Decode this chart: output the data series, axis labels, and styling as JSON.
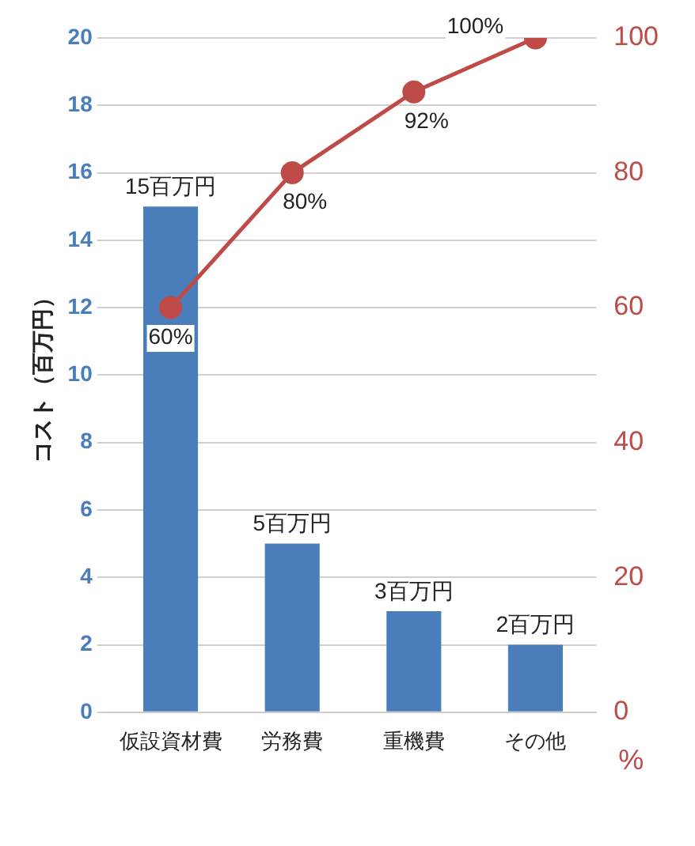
{
  "chart_data": {
    "type": "bar",
    "ylabel": "コスト（百万円）",
    "y2label": "%",
    "categories": [
      "仮設資材費",
      "労務費",
      "重機費",
      "その他"
    ],
    "series": [
      {
        "color": "#4a7ebb",
        "values": [
          15,
          5,
          3,
          2
        ],
        "value_labels": [
          "15百万円",
          "5百万円",
          "3百万円",
          "2百万円"
        ]
      },
      {
        "type": "line",
        "axis": "y2",
        "color": "#be4b48",
        "values": [
          60,
          80,
          92,
          100
        ],
        "value_labels": [
          "60%",
          "80%",
          "92%",
          "100%"
        ]
      }
    ],
    "ylim": [
      0,
      20
    ],
    "yticks": [
      0,
      2,
      4,
      6,
      8,
      10,
      12,
      14,
      16,
      18,
      20
    ],
    "y2lim": [
      0,
      100
    ],
    "y2ticks": [
      0,
      20,
      40,
      60,
      80,
      100
    ],
    "grid": "y",
    "legend": false,
    "marker": "circle",
    "line_style": "solid"
  }
}
